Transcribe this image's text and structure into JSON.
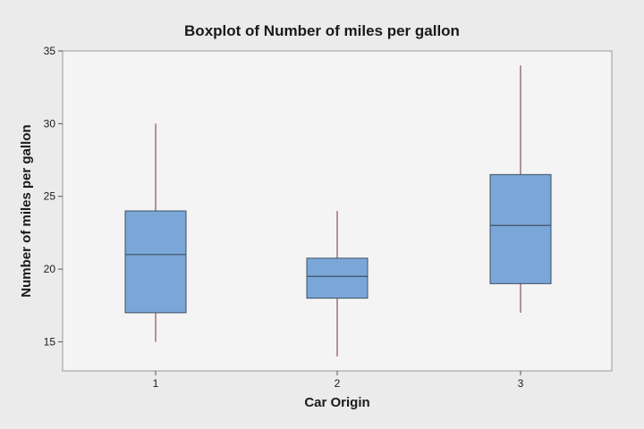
{
  "chart_data": {
    "type": "box",
    "title": "Boxplot of Number of miles per gallon",
    "xlabel": "Car Origin",
    "ylabel": "Number of miles per gallon",
    "ylim": [
      13,
      35
    ],
    "yticks": [
      15,
      20,
      25,
      30,
      35
    ],
    "categories": [
      "1",
      "2",
      "3"
    ],
    "boxes": [
      {
        "category": "1",
        "min": 15,
        "q1": 17,
        "median": 21,
        "q3": 24,
        "max": 30
      },
      {
        "category": "2",
        "min": 14,
        "q1": 18,
        "median": 19.5,
        "q3": 20.75,
        "max": 24
      },
      {
        "category": "3",
        "min": 17,
        "q1": 19,
        "median": 23,
        "q3": 26.5,
        "max": 34
      }
    ],
    "grid": false,
    "colors": {
      "box_fill": "#7ba7d8",
      "box_stroke": "#3d4f66",
      "whisker": "#7a3030",
      "plot_background": "#f4f4f4",
      "figure_background": "#ebebeb"
    }
  }
}
